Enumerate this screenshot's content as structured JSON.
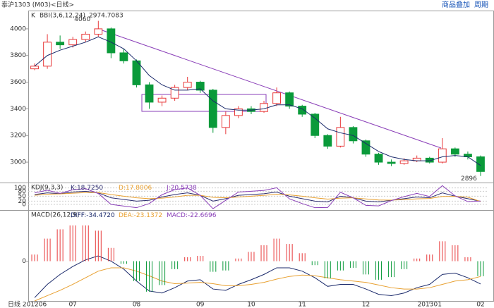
{
  "header": {
    "title": "泰沪1303 (M03)<日线>",
    "buttons": [
      "商品叠加",
      "周期"
    ]
  },
  "chart_data": [
    {
      "type": "candlestick",
      "label": "K",
      "open": [
        3700,
        3720,
        3900,
        3880,
        3920,
        3960,
        4000,
        3820,
        3760,
        3580,
        3450,
        3480,
        3560,
        3600,
        3540,
        3260,
        3350,
        3400,
        3380,
        3440,
        3520,
        3420,
        3360,
        3200,
        3120,
        3260,
        3160,
        3060,
        3000,
        2990,
        3010,
        3030,
        3000,
        3100,
        3060,
        3040
      ],
      "high": [
        3740,
        3960,
        3950,
        3940,
        3980,
        4060,
        4010,
        3850,
        3770,
        3600,
        3500,
        3580,
        3640,
        3610,
        3550,
        3380,
        3420,
        3420,
        3460,
        3560,
        3530,
        3430,
        3370,
        3210,
        3340,
        3270,
        3170,
        3070,
        3020,
        3030,
        3050,
        3040,
        3180,
        3110,
        3080,
        3050
      ],
      "low": [
        3690,
        3700,
        3850,
        3860,
        3900,
        3940,
        3780,
        3740,
        3560,
        3400,
        3420,
        3460,
        3540,
        3520,
        3220,
        3210,
        3330,
        3360,
        3370,
        3420,
        3400,
        3340,
        3180,
        3100,
        3110,
        3140,
        3040,
        2980,
        2970,
        2980,
        3000,
        2990,
        2990,
        3040,
        3020,
        2896
      ],
      "close": [
        3720,
        3900,
        3880,
        3920,
        3960,
        4000,
        3820,
        3760,
        3580,
        3450,
        3480,
        3560,
        3600,
        3540,
        3260,
        3350,
        3400,
        3380,
        3440,
        3520,
        3420,
        3360,
        3200,
        3120,
        3260,
        3160,
        3060,
        3000,
        2990,
        3010,
        3030,
        3000,
        3100,
        3060,
        3040,
        2930
      ],
      "up_color": "#e8393a",
      "down_color": "#0a9a3a",
      "series": [
        {
          "name": "BBI(3,6,12,24)",
          "color": "#1b2a6b",
          "last_value": 2974.7083,
          "values": [
            3720,
            3800,
            3840,
            3870,
            3900,
            3940,
            3900,
            3850,
            3760,
            3650,
            3580,
            3540,
            3540,
            3550,
            3460,
            3400,
            3390,
            3390,
            3400,
            3430,
            3430,
            3400,
            3330,
            3250,
            3220,
            3200,
            3140,
            3080,
            3040,
            3020,
            3010,
            3010,
            3040,
            3050,
            3040,
            2975
          ]
        }
      ],
      "ylim": [
        2847,
        4137
      ],
      "yticks": [
        3000,
        3200,
        3400,
        3600,
        3800,
        4000
      ]
    },
    {
      "type": "line",
      "title": "KDJ(9,3,3)",
      "series": [
        {
          "name": "K:",
          "color": "#2b2b6e",
          "last_label": "18.7250",
          "values": [
            60,
            70,
            65,
            75,
            80,
            70,
            40,
            30,
            20,
            25,
            45,
            60,
            70,
            55,
            20,
            35,
            55,
            60,
            65,
            75,
            50,
            35,
            20,
            15,
            50,
            40,
            20,
            15,
            25,
            35,
            45,
            40,
            70,
            50,
            35,
            18.725
          ]
        },
        {
          "name": "D:",
          "color": "#e8a030",
          "last_label": "17.8006",
          "values": [
            55,
            62,
            64,
            68,
            72,
            72,
            60,
            50,
            40,
            35,
            38,
            45,
            55,
            55,
            43,
            40,
            45,
            50,
            55,
            62,
            58,
            50,
            40,
            32,
            38,
            40,
            33,
            27,
            26,
            29,
            34,
            36,
            48,
            49,
            44,
            17.8006
          ]
        },
        {
          "name": "J:",
          "color": "#8a3fb8",
          "last_label": "20.5738",
          "values": [
            70,
            86,
            67,
            89,
            96,
            66,
            0,
            -10,
            -20,
            5,
            59,
            90,
            100,
            55,
            -26,
            25,
            75,
            80,
            85,
            101,
            34,
            5,
            -20,
            -19,
            74,
            40,
            -6,
            -9,
            23,
            47,
            67,
            48,
            114,
            52,
            17,
            20.5738
          ]
        }
      ],
      "ylim": [
        -30,
        120
      ],
      "yticks": [
        0,
        20,
        50,
        80,
        100
      ],
      "grid": true
    },
    {
      "type": "macd",
      "title": "MACD(26,12,9)",
      "x_label": "日线",
      "categories": [
        "201206",
        null,
        null,
        "07",
        null,
        null,
        null,
        null,
        "08",
        null,
        null,
        null,
        null,
        "09",
        null,
        null,
        null,
        "10",
        null,
        null,
        null,
        "11",
        null,
        null,
        null,
        null,
        "12",
        null,
        null,
        null,
        null,
        "201301",
        null,
        null,
        null,
        "02"
      ],
      "series": [
        {
          "name": "DIFF:",
          "color": "#1b2a6b",
          "last_label": "-34.4720",
          "values": [
            -55,
            -35,
            -20,
            -8,
            2,
            8,
            0,
            -12,
            -30,
            -45,
            -48,
            -40,
            -30,
            -28,
            -42,
            -44,
            -35,
            -28,
            -20,
            -10,
            -10,
            -15,
            -25,
            -38,
            -35,
            -35,
            -42,
            -50,
            -52,
            -48,
            -40,
            -35,
            -20,
            -18,
            -25,
            -34.472
          ]
        },
        {
          "name": "DEA:",
          "color": "#e8a030",
          "last_label": "-23.1372",
          "values": [
            -60,
            -52,
            -44,
            -35,
            -25,
            -15,
            -10,
            -10,
            -15,
            -22,
            -30,
            -34,
            -33,
            -32,
            -34,
            -37,
            -37,
            -35,
            -32,
            -27,
            -23,
            -21,
            -22,
            -25,
            -28,
            -30,
            -32,
            -36,
            -40,
            -42,
            -42,
            -40,
            -35,
            -30,
            -28,
            -23.1372
          ]
        },
        {
          "name": "MACD:",
          "color": "#8a3fb8",
          "last_label": "-22.6696",
          "up_color": "#e8393a",
          "down_color": "#0a9a3a",
          "values": [
            10,
            34,
            48,
            54,
            54,
            46,
            20,
            -4,
            -30,
            -46,
            -36,
            -12,
            6,
            8,
            -16,
            -14,
            4,
            14,
            24,
            34,
            26,
            12,
            -6,
            -26,
            -14,
            -10,
            -20,
            -28,
            -24,
            -12,
            4,
            10,
            30,
            24,
            6,
            -22.6696
          ]
        }
      ],
      "ylim": [
        -60,
        75
      ],
      "yticks": [
        0
      ]
    }
  ]
}
